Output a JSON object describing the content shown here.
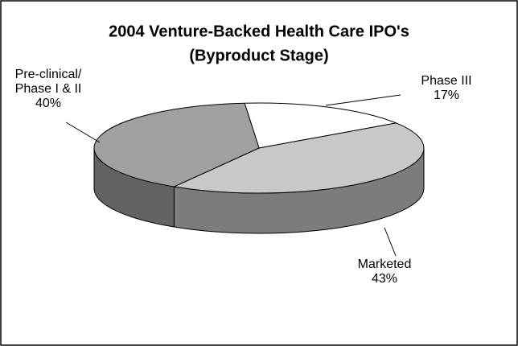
{
  "chart_data": {
    "type": "pie3d",
    "title": "2004 Venture-Backed Health Care IPO's",
    "subtitle": "(Byproduct Stage)",
    "categories": [
      "Phase III",
      "Marketed",
      "Pre-clinical/ Phase I & II"
    ],
    "values": [
      17,
      43,
      40
    ],
    "value_labels": [
      "17%",
      "43%",
      "40%"
    ],
    "colors": [
      "#ffffff",
      "#c8c8c8",
      "#a0a0a0"
    ]
  }
}
